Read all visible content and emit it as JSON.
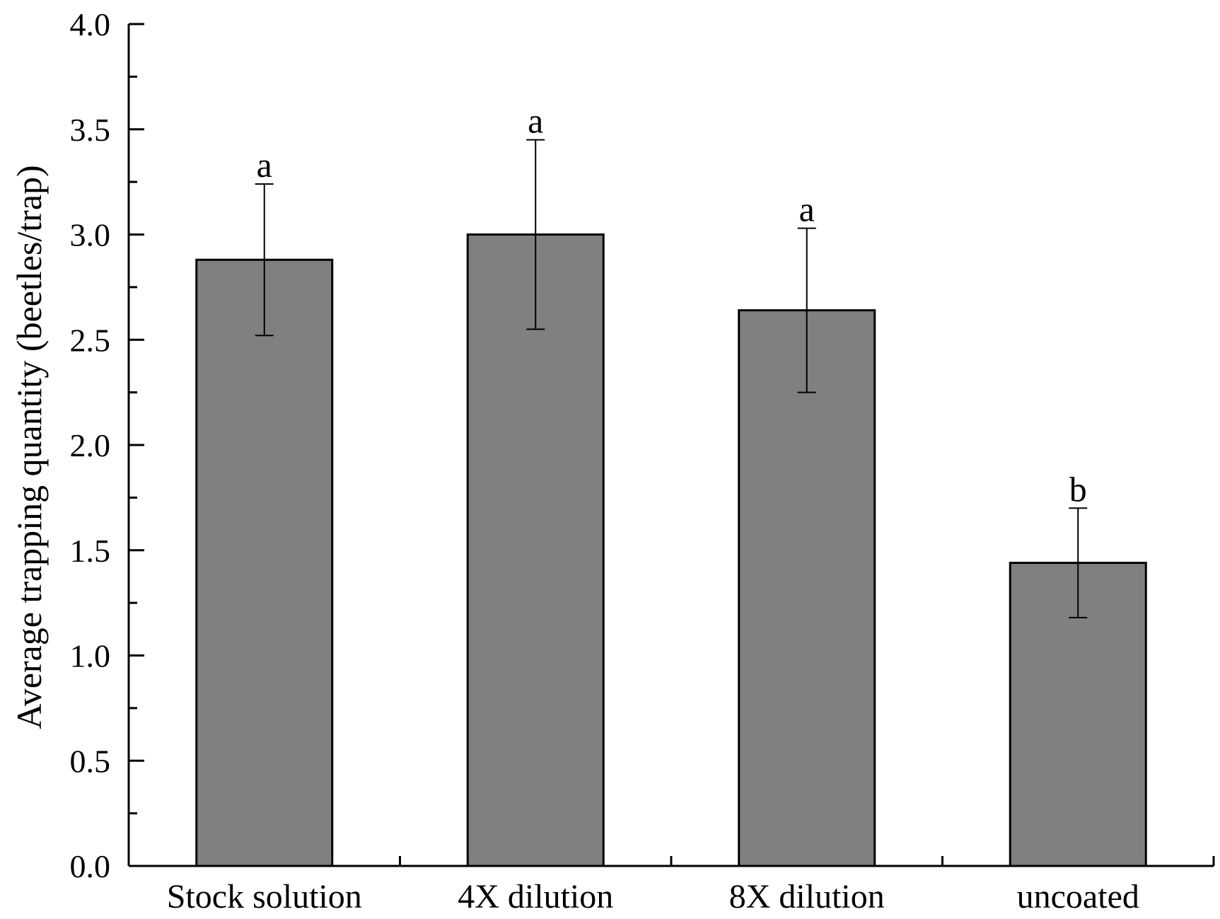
{
  "chart_data": {
    "type": "bar",
    "title": "",
    "xlabel": "",
    "ylabel": "Average trapping quantity (beetles/trap)",
    "categories": [
      "Stock solution",
      "4X dilution",
      "8X dilution",
      "uncoated"
    ],
    "values": [
      2.88,
      3.0,
      2.64,
      1.44
    ],
    "error_upper": [
      3.24,
      3.45,
      3.03,
      1.7
    ],
    "error_lower": [
      2.52,
      2.55,
      2.25,
      1.18
    ],
    "significance_labels": [
      "a",
      "a",
      "a",
      "b"
    ],
    "ylim": [
      0.0,
      4.0
    ],
    "yticks": [
      "0.0",
      "0.5",
      "1.0",
      "1.5",
      "2.0",
      "2.5",
      "3.0",
      "3.5",
      "4.0"
    ],
    "grid": false,
    "legend": "none",
    "bar_color": "#808080",
    "edge_color": "#000000"
  }
}
